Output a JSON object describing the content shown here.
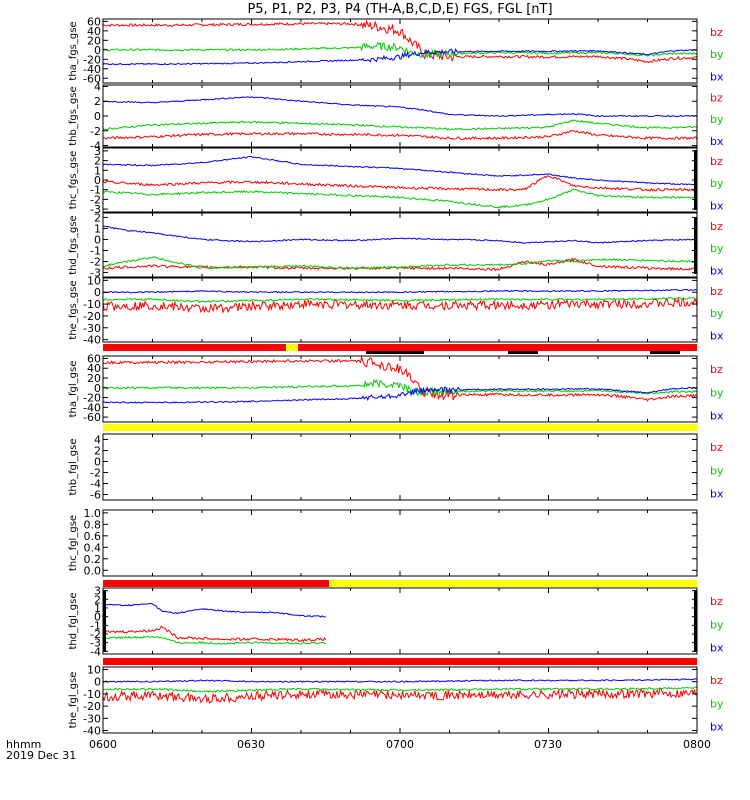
{
  "title": "P5, P1, P2, P3, P4 (TH-A,B,C,D,E) FGS, FGL [nT]",
  "x_axis": {
    "label": "hhmm",
    "date": "2019 Dec 31",
    "ticks": [
      "0600",
      "0630",
      "0700",
      "0730",
      "0800"
    ]
  },
  "colors": {
    "bx": "#0000ff",
    "by": "#00cc00",
    "bz": "#ff0000",
    "flag_red": "#ff0000",
    "flag_yellow": "#ffff00",
    "flag_black": "#000000"
  },
  "chart_data": [
    {
      "type": "line",
      "ylabel": "tha_fgs_gse",
      "yticks": [
        "60",
        "40",
        "20",
        "0",
        "-20",
        "-40",
        "-60"
      ],
      "ylim": [
        -70,
        65
      ],
      "legend": [
        "bz",
        "by",
        "bx"
      ],
      "x_minutes": [
        0,
        15,
        30,
        40,
        50,
        55,
        60,
        62,
        65,
        70,
        80,
        90,
        100,
        105,
        110,
        115,
        120
      ],
      "series": [
        {
          "name": "bz",
          "values": [
            52,
            52,
            54,
            55,
            55,
            50,
            40,
            20,
            -10,
            -15,
            -14,
            -15,
            -14,
            -18,
            -25,
            -18,
            -16
          ]
        },
        {
          "name": "by",
          "values": [
            0,
            0,
            0,
            2,
            4,
            8,
            5,
            -5,
            -10,
            -8,
            -6,
            -7,
            -6,
            -8,
            -12,
            -8,
            -8
          ]
        },
        {
          "name": "bx",
          "values": [
            -30,
            -30,
            -28,
            -25,
            -22,
            -20,
            -15,
            -10,
            -5,
            -4,
            -3,
            -3,
            -2,
            -6,
            -10,
            -2,
            0
          ]
        }
      ]
    },
    {
      "type": "line",
      "ylabel": "thb_fgs_gse",
      "yticks": [
        "4",
        "2",
        "0",
        "-2",
        "-4"
      ],
      "ylim": [
        -4.2,
        4.2
      ],
      "legend": [
        "bz",
        "by",
        "bx"
      ],
      "x_minutes": [
        0,
        10,
        20,
        30,
        40,
        50,
        60,
        65,
        70,
        80,
        90,
        95,
        100,
        110,
        120
      ],
      "series": [
        {
          "name": "bz",
          "values": [
            -3.0,
            -2.8,
            -2.5,
            -2.4,
            -2.4,
            -2.5,
            -2.6,
            -2.8,
            -3.0,
            -3.0,
            -2.8,
            -2.0,
            -2.6,
            -3.0,
            -3.0
          ]
        },
        {
          "name": "by",
          "values": [
            -1.8,
            -1.2,
            -1.0,
            -0.8,
            -1.0,
            -1.2,
            -1.5,
            -1.6,
            -1.8,
            -1.7,
            -1.5,
            -0.6,
            -1.0,
            -1.6,
            -1.5
          ]
        },
        {
          "name": "bx",
          "values": [
            2.0,
            1.8,
            2.2,
            2.6,
            2.0,
            1.5,
            1.2,
            0.8,
            0.2,
            0.0,
            0.2,
            0.3,
            0.0,
            0.0,
            0.0
          ]
        }
      ]
    },
    {
      "type": "line",
      "ylabel": "thc_fgs_gse",
      "yticks": [
        "3",
        "2",
        "1",
        "0",
        "-1",
        "-2",
        "-3"
      ],
      "ylim": [
        -3.3,
        3.3
      ],
      "legend": [
        "bz",
        "by",
        "bx"
      ],
      "x_minutes": [
        0,
        10,
        20,
        30,
        40,
        50,
        60,
        70,
        80,
        85,
        90,
        95,
        100,
        110,
        120
      ],
      "series": [
        {
          "name": "bz",
          "values": [
            -0.2,
            -0.5,
            -0.3,
            -0.2,
            -0.4,
            -0.6,
            -0.8,
            -0.9,
            -1.0,
            -1.0,
            0.5,
            -0.6,
            -0.8,
            -1.0,
            -1.0
          ]
        },
        {
          "name": "by",
          "values": [
            -1.2,
            -1.5,
            -1.3,
            -1.2,
            -1.4,
            -1.6,
            -1.8,
            -2.2,
            -2.8,
            -2.6,
            -2.0,
            -1.0,
            -1.6,
            -1.8,
            -1.8
          ]
        },
        {
          "name": "bx",
          "values": [
            1.6,
            1.5,
            1.8,
            2.4,
            1.6,
            1.4,
            1.2,
            0.8,
            0.4,
            0.5,
            0.6,
            0.2,
            0.0,
            -0.3,
            -0.5
          ]
        }
      ]
    },
    {
      "type": "line",
      "ylabel": "thd_fgs_gse",
      "yticks": [
        "2",
        "1",
        "0",
        "-1",
        "-2",
        "-3"
      ],
      "ylim": [
        -3.4,
        2.4
      ],
      "legend": [
        "bz",
        "by",
        "bx"
      ],
      "x_minutes": [
        0,
        5,
        10,
        20,
        30,
        40,
        50,
        60,
        70,
        80,
        85,
        90,
        95,
        100,
        110,
        120
      ],
      "series": [
        {
          "name": "bz",
          "values": [
            -2.6,
            -2.5,
            -2.4,
            -2.5,
            -2.5,
            -2.6,
            -2.6,
            -2.6,
            -2.6,
            -2.7,
            -2.0,
            -2.3,
            -1.8,
            -2.4,
            -2.6,
            -2.7
          ]
        },
        {
          "name": "by",
          "values": [
            -2.4,
            -2.0,
            -1.6,
            -2.6,
            -2.5,
            -2.4,
            -2.6,
            -2.5,
            -2.3,
            -2.3,
            -2.2,
            -1.9,
            -2.0,
            -1.8,
            -1.9,
            -2.0
          ]
        },
        {
          "name": "bx",
          "values": [
            1.2,
            0.8,
            0.6,
            0.0,
            -0.2,
            0.0,
            -0.1,
            0.1,
            0.0,
            -0.1,
            -0.3,
            -0.2,
            -0.1,
            -0.3,
            -0.1,
            0.0
          ]
        }
      ]
    },
    {
      "type": "line",
      "ylabel": "the_fgs_gse",
      "yticks": [
        "10",
        "0",
        "-10",
        "-20",
        "-30",
        "-40"
      ],
      "ylim": [
        -42,
        12
      ],
      "legend": [
        "bz",
        "by",
        "bx"
      ],
      "x_minutes": [
        0,
        10,
        20,
        30,
        40,
        60,
        80,
        100,
        120
      ],
      "series": [
        {
          "name": "bz",
          "values": [
            -12,
            -11,
            -14,
            -12,
            -10,
            -11,
            -11,
            -10,
            -9
          ]
        },
        {
          "name": "by",
          "values": [
            -6,
            -6,
            -8,
            -7,
            -6,
            -7,
            -6,
            -6,
            -5
          ]
        },
        {
          "name": "bx",
          "values": [
            0,
            0,
            1,
            0,
            0,
            0,
            1,
            1,
            2
          ]
        }
      ]
    },
    {
      "type": "line",
      "ylabel": "tha_fgl_gse",
      "yticks": [
        "60",
        "40",
        "20",
        "0",
        "-20",
        "-40",
        "-60"
      ],
      "ylim": [
        -70,
        65
      ],
      "legend": [
        "bz",
        "by",
        "bx"
      ],
      "x_minutes": [
        0,
        15,
        30,
        40,
        50,
        55,
        60,
        62,
        65,
        70,
        80,
        90,
        100,
        105,
        110,
        115,
        120
      ],
      "series": [
        {
          "name": "bz",
          "values": [
            52,
            52,
            54,
            55,
            55,
            50,
            40,
            20,
            -10,
            -15,
            -14,
            -15,
            -14,
            -18,
            -25,
            -18,
            -16
          ]
        },
        {
          "name": "by",
          "values": [
            0,
            0,
            0,
            2,
            4,
            8,
            5,
            -5,
            -10,
            -8,
            -6,
            -7,
            -6,
            -8,
            -12,
            -8,
            -8
          ]
        },
        {
          "name": "bx",
          "values": [
            -30,
            -30,
            -28,
            -25,
            -22,
            -20,
            -15,
            -10,
            -5,
            -4,
            -3,
            -3,
            -2,
            -6,
            -10,
            -2,
            0
          ]
        }
      ]
    },
    {
      "type": "line",
      "ylabel": "thb_fgl_gse",
      "yticks": [
        "4",
        "2",
        "0",
        "-2",
        "-4",
        "-6"
      ],
      "ylim": [
        -7,
        5
      ],
      "legend": [
        "bz",
        "by",
        "bx"
      ],
      "x_minutes": [],
      "series": []
    },
    {
      "type": "line",
      "ylabel": "thc_fgl_gse",
      "yticks": [
        "1.0",
        "0.8",
        "0.6",
        "0.4",
        "0.2",
        "0.0"
      ],
      "ylim": [
        -0.1,
        1.05
      ],
      "legend": [],
      "x_minutes": [],
      "series": []
    },
    {
      "type": "line",
      "ylabel": "thd_fgl_gse",
      "yticks": [
        "3",
        "2",
        "1",
        "0",
        "-1",
        "-2",
        "-3",
        "-4"
      ],
      "ylim": [
        -4.3,
        3.3
      ],
      "legend": [
        "bz",
        "by",
        "bx"
      ],
      "x_minutes": [
        0,
        5,
        10,
        12,
        15,
        20,
        25,
        30,
        35,
        40,
        45
      ],
      "series": [
        {
          "name": "bz",
          "values": [
            -1.8,
            -1.7,
            -1.6,
            -1.2,
            -2.4,
            -2.5,
            -2.6,
            -2.6,
            -2.6,
            -2.7,
            -2.6
          ]
        },
        {
          "name": "by",
          "values": [
            -2.5,
            -2.4,
            -2.3,
            -2.4,
            -3.0,
            -3.0,
            -3.1,
            -3.0,
            -3.0,
            -3.1,
            -3.0
          ]
        },
        {
          "name": "bx",
          "values": [
            1.4,
            1.3,
            1.5,
            0.6,
            0.4,
            0.9,
            0.6,
            0.5,
            0.5,
            0.1,
            0.0
          ]
        }
      ]
    },
    {
      "type": "line",
      "ylabel": "the_fgl_gse",
      "yticks": [
        "10",
        "0",
        "-10",
        "-20",
        "-30",
        "-40"
      ],
      "ylim": [
        -42,
        12
      ],
      "legend": [
        "bz",
        "by",
        "bx"
      ],
      "x_minutes": [
        0,
        10,
        20,
        30,
        40,
        60,
        80,
        100,
        120
      ],
      "series": [
        {
          "name": "bz",
          "values": [
            -12,
            -11,
            -14,
            -12,
            -10,
            -11,
            -11,
            -10,
            -9
          ]
        },
        {
          "name": "by",
          "values": [
            -6,
            -6,
            -8,
            -7,
            -6,
            -7,
            -6,
            -6,
            -5
          ]
        },
        {
          "name": "bx",
          "values": [
            0,
            0,
            1,
            0,
            0,
            0,
            1,
            1,
            2
          ]
        }
      ]
    }
  ]
}
